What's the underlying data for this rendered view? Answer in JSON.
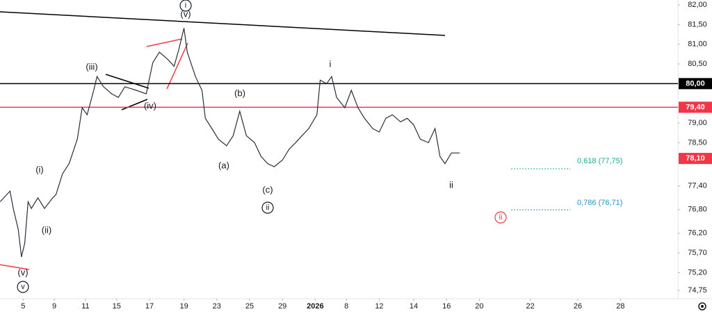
{
  "chart_data": {
    "type": "line",
    "color": "#2a2e39",
    "x": [
      -0.5,
      0.1,
      0.3,
      0.6,
      0.8,
      1.0,
      1.2,
      1.4,
      1.8,
      2.2,
      2.7,
      2.9,
      3.3,
      3.7,
      4.2,
      4.5,
      4.8,
      5.2,
      5.4,
      5.8,
      6.3,
      6.7,
      7.1,
      7.8,
      8.4,
      8.8,
      9.2,
      9.7,
      10.1,
      10.4,
      10.7,
      10.9,
      11.4,
      11.8,
      12.0,
      12.4,
      12.8,
      13.3,
      13.7,
      14.1,
      14.5,
      15.0,
      15.4,
      15.8,
      16.2,
      16.7,
      17.1,
      17.5,
      17.9,
      18.3,
      18.8,
      19.0,
      19.4,
      19.7,
      20.0,
      20.5,
      20.9,
      21.3,
      21.7,
      22.2,
      22.6,
      23.0,
      23.4,
      23.9,
      24.3,
      24.7,
      25.1,
      25.6,
      26.0,
      26.3,
      26.6,
      27.0,
      27.5
    ],
    "values": [
      77.0,
      77.27,
      76.83,
      76.3,
      75.6,
      75.95,
      77.0,
      76.83,
      77.1,
      76.83,
      77.1,
      77.18,
      77.71,
      77.97,
      78.59,
      79.39,
      79.21,
      79.83,
      80.18,
      79.92,
      79.74,
      79.65,
      79.92,
      79.83,
      79.74,
      80.53,
      80.8,
      80.62,
      80.44,
      80.89,
      81.41,
      80.8,
      80.18,
      79.83,
      79.12,
      78.86,
      78.59,
      78.42,
      78.68,
      79.3,
      78.68,
      78.5,
      78.15,
      77.97,
      77.89,
      78.06,
      78.33,
      78.5,
      78.68,
      78.86,
      79.21,
      80.09,
      80.0,
      80.18,
      79.65,
      79.39,
      79.83,
      79.39,
      79.12,
      78.86,
      78.77,
      79.12,
      79.21,
      79.03,
      79.12,
      78.95,
      78.59,
      78.5,
      78.86,
      78.15,
      77.97,
      78.24,
      78.24
    ],
    "xlim": [
      -0.51,
      40.8
    ],
    "ylim": [
      74.5,
      82.12
    ],
    "xticks": [
      {
        "value": 0.9,
        "label": "5"
      },
      {
        "value": 2.8,
        "label": "9"
      },
      {
        "value": 4.7,
        "label": "11"
      },
      {
        "value": 6.6,
        "label": "15"
      },
      {
        "value": 8.6,
        "label": "17"
      },
      {
        "value": 10.7,
        "label": "19"
      },
      {
        "value": 12.7,
        "label": "23"
      },
      {
        "value": 14.7,
        "label": "25"
      },
      {
        "value": 16.7,
        "label": "29"
      },
      {
        "value": 18.7,
        "label": "2026"
      },
      {
        "value": 20.6,
        "label": "8"
      },
      {
        "value": 22.6,
        "label": "12"
      },
      {
        "value": 24.7,
        "label": "14"
      },
      {
        "value": 26.7,
        "label": "16"
      },
      {
        "value": 28.7,
        "label": "20"
      },
      {
        "value": 31.8,
        "label": "22"
      },
      {
        "value": 34.7,
        "label": "26"
      },
      {
        "value": 37.3,
        "label": "28"
      }
    ],
    "yticks": [
      {
        "value": 82,
        "label": "82,00"
      },
      {
        "value": 81.5,
        "label": "81,50"
      },
      {
        "value": 81,
        "label": "81,00"
      },
      {
        "value": 80.5,
        "label": "80,50"
      },
      {
        "value": 79,
        "label": "79,00"
      },
      {
        "value": 78.5,
        "label": "78,50"
      },
      {
        "value": 77.4,
        "label": "77,40"
      },
      {
        "value": 76.8,
        "label": "76,80"
      },
      {
        "value": 76.2,
        "label": "76,20"
      },
      {
        "value": 75.7,
        "label": "75,70"
      },
      {
        "value": 75.2,
        "label": "75,20"
      },
      {
        "value": 74.75,
        "label": "74,75"
      }
    ],
    "price_lines": [
      {
        "value": 80,
        "label": "80,00",
        "color": "#000000"
      },
      {
        "value": 79.4,
        "label": "79,40",
        "color": "#f23645"
      }
    ],
    "last_price": {
      "value": 78.1,
      "label": "78,10",
      "color": "#f23645"
    },
    "annotations": [
      "(iii)",
      "(iv)",
      "(v)",
      "i",
      "(i)",
      "(ii)",
      "(v)",
      "v",
      "(a)",
      "(b)",
      "(c)",
      "ii",
      "i",
      "ii",
      "ii"
    ],
    "fib_levels": [
      {
        "label": "0,618 (77,75)",
        "color": "#22ab94"
      },
      {
        "label": "0,786 (76,71)",
        "color": "#2196c4"
      }
    ]
  }
}
